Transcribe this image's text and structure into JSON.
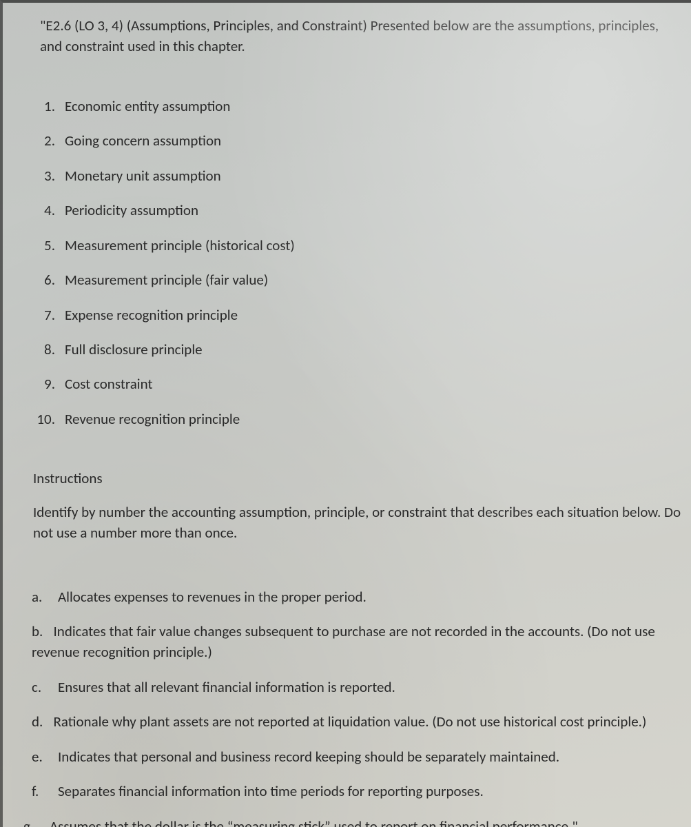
{
  "intro": "\"E2.6 (LO 3, 4) (Assumptions, Principles, and Constraint) Presented below are the assumptions, principles, and constraint used in this chapter.",
  "numbered": [
    {
      "n": "1.",
      "t": "Economic entity assumption"
    },
    {
      "n": "2.",
      "t": "Going concern assumption"
    },
    {
      "n": "3.",
      "t": "Monetary unit assumption"
    },
    {
      "n": "4.",
      "t": "Periodicity assumption"
    },
    {
      "n": "5.",
      "t": "Measurement principle (historical cost)"
    },
    {
      "n": "6.",
      "t": "Measurement principle (fair value)"
    },
    {
      "n": "7.",
      "t": "Expense recognition principle"
    },
    {
      "n": "8.",
      "t": "Full disclosure principle"
    },
    {
      "n": "9.",
      "t": "Cost constraint"
    },
    {
      "n": "10.",
      "t": "Revenue recognition principle"
    }
  ],
  "instructions_heading": "Instructions",
  "instructions_body": "Identify by number the accounting assumption, principle, or constraint that describes each situation below. Do not use a number more than once.",
  "lettered": [
    {
      "l": "a.",
      "t": "Allocates expenses to revenues in the proper period."
    },
    {
      "l": "b.",
      "t": "Indicates that fair value changes subsequent to purchase are not recorded in the accounts. (Do not use revenue recognition principle.)"
    },
    {
      "l": "c.",
      "t": "Ensures that all relevant financial information is reported."
    },
    {
      "l": "d.",
      "t": "Rationale why plant assets are not reported at liquidation value. (Do not use historical cost principle.)"
    },
    {
      "l": "e.",
      "t": "Indicates that personal and business record keeping should be separately maintained."
    },
    {
      "l": "f.",
      "t": "Separates financial information into time periods for reporting purposes."
    },
    {
      "l": "g.",
      "t": "Assumes that the dollar is the “measuring stick” used to report on financial performance.\""
    }
  ],
  "colors": {
    "text": "#2a2a2a",
    "bg_top": "#c1c4c1",
    "bg_bottom": "#d5d4cc"
  },
  "font": {
    "family": "Calibri",
    "size_pt": 16
  }
}
